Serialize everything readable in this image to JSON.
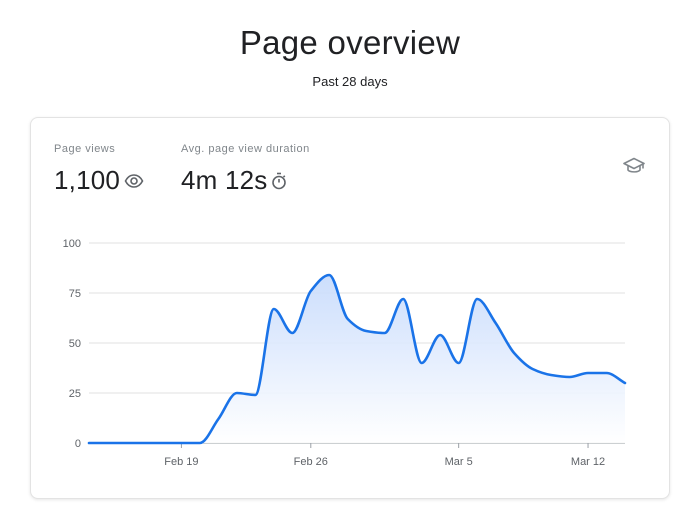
{
  "header": {
    "title": "Page overview",
    "subtitle": "Past 28 days"
  },
  "metrics": [
    {
      "label": "Page views",
      "value": "1,100",
      "icon": "eye-icon"
    },
    {
      "label": "Avg. page view duration",
      "value": "4m 12s",
      "icon": "stopwatch-icon"
    }
  ],
  "learn_icon": "graduation-cap-icon",
  "colors": {
    "line": "#1a73e8",
    "grid": "#e0e0e0",
    "area_top": "#c6dafc",
    "area_bottom": "#ffffff"
  },
  "chart_data": {
    "type": "area",
    "x": [
      "Feb 14",
      "Feb 15",
      "Feb 16",
      "Feb 17",
      "Feb 18",
      "Feb 19",
      "Feb 20",
      "Feb 21",
      "Feb 22",
      "Feb 23",
      "Feb 24",
      "Feb 25",
      "Feb 26",
      "Feb 27",
      "Feb 28",
      "Feb 29",
      "Mar 1",
      "Mar 2",
      "Mar 3",
      "Mar 4",
      "Mar 5",
      "Mar 6",
      "Mar 7",
      "Mar 8",
      "Mar 9",
      "Mar 10",
      "Mar 11",
      "Mar 12",
      "Mar 13",
      "Mar 14"
    ],
    "series": [
      {
        "values": [
          0,
          0,
          0,
          0,
          0,
          0,
          0,
          12,
          25,
          24,
          67,
          55,
          76,
          84,
          62,
          56,
          55,
          72,
          40,
          54,
          40,
          72,
          60,
          45,
          37,
          34,
          33,
          35,
          35,
          30
        ]
      }
    ],
    "x_ticks": [
      "Feb 19",
      "Feb 26",
      "Mar 5",
      "Mar 12"
    ],
    "y_ticks": [
      0,
      25,
      50,
      75,
      100
    ],
    "ylim": [
      0,
      100
    ],
    "grid": true,
    "legend": "none"
  }
}
